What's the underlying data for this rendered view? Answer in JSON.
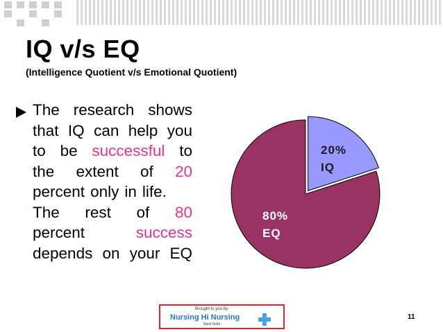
{
  "slide": {
    "title": "IQ v/s EQ",
    "subtitle": "(Intelligence Quotient v/s Emotional Quotient)",
    "body_lines": [
      {
        "parts": [
          "The",
          "research",
          "shows"
        ]
      },
      {
        "parts": [
          "that",
          "IQ",
          "can",
          "help",
          "you"
        ]
      },
      {
        "parts": [
          "to",
          "be",
          "successful",
          "to"
        ],
        "pink": [
          2
        ]
      },
      {
        "parts": [
          "the",
          "extent",
          "of",
          "20"
        ],
        "pink": [
          3
        ]
      },
      {
        "parts": [
          "percent",
          "only",
          "in",
          "life."
        ],
        "left": true
      },
      {
        "parts": [
          "The",
          "rest",
          "of",
          "80"
        ],
        "pink": [
          3
        ]
      },
      {
        "parts": [
          "percent",
          "success"
        ],
        "pink": [
          1
        ]
      },
      {
        "parts": [
          "depends",
          "on",
          "your",
          "EQ"
        ]
      }
    ],
    "page_number": "11"
  },
  "logo": {
    "top_text": "Brought to you by-",
    "main_text": "Nursing Hi Nursing",
    "sub_text": "West Delhi"
  },
  "colors": {
    "eq_slice": "#983363",
    "iq_slice": "#9999ff",
    "highlight": "#e8338a"
  },
  "chart_data": {
    "type": "pie",
    "slices": [
      {
        "label": "IQ",
        "value": 20,
        "display": [
          "20%",
          "IQ"
        ],
        "color": "#9999ff",
        "exploded": true
      },
      {
        "label": "EQ",
        "value": 80,
        "display": [
          "80%",
          "EQ"
        ],
        "color": "#983363",
        "exploded": false
      }
    ]
  }
}
